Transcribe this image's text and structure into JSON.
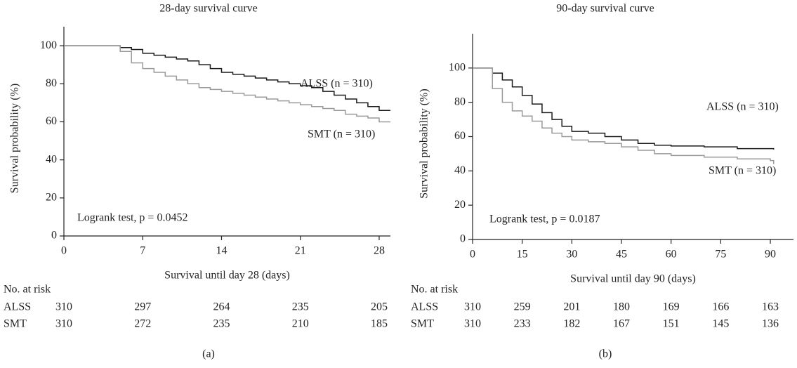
{
  "chart_data": [
    {
      "type": "line",
      "title": "28-day survival curve",
      "x_label": "Survival until day 28 (days)",
      "y_label": "Survival probability (%)",
      "xlim": [
        0,
        29
      ],
      "ylim": [
        0,
        110
      ],
      "xticks": [
        0,
        7,
        14,
        21,
        28
      ],
      "yticks": [
        0,
        20,
        40,
        60,
        80,
        100
      ],
      "x": [
        0,
        4,
        5,
        6,
        7,
        8,
        9,
        10,
        11,
        12,
        13,
        14,
        15,
        16,
        17,
        18,
        19,
        20,
        21,
        22,
        23,
        24,
        25,
        26,
        27,
        28,
        29
      ],
      "series": [
        {
          "name": "ALSS (n = 310)",
          "color": "#1a1a1a",
          "values": [
            100,
            100,
            99,
            98,
            96,
            95,
            94,
            93,
            92,
            90,
            88,
            86,
            85,
            84,
            83,
            82,
            81,
            80,
            79,
            78,
            76,
            74,
            72,
            70,
            68,
            66,
            66
          ]
        },
        {
          "name": "SMT (n = 310)",
          "color": "#9a9a9a",
          "values": [
            100,
            100,
            97,
            91,
            88,
            86,
            84,
            82,
            80,
            78,
            77,
            76,
            75,
            74,
            73,
            72,
            71,
            70,
            69,
            68,
            67,
            66,
            64,
            63,
            62,
            60,
            60
          ]
        }
      ],
      "annotation": "Logrank test, p = 0.0452",
      "risk_table": {
        "title": "No. at risk",
        "rows": [
          {
            "name": "ALSS",
            "values": [
              310,
              297,
              264,
              235,
              205
            ]
          },
          {
            "name": "SMT",
            "values": [
              310,
              272,
              235,
              210,
              185
            ]
          }
        ]
      },
      "panel_label": "(a)"
    },
    {
      "type": "line",
      "title": "90-day survival curve",
      "x_label": "Survival until day 90 (days)",
      "y_label": "Survival probability (%)",
      "xlim": [
        0,
        97
      ],
      "ylim": [
        0,
        120
      ],
      "xticks": [
        0,
        15,
        30,
        45,
        60,
        75,
        90
      ],
      "yticks": [
        0,
        20,
        40,
        60,
        80,
        100
      ],
      "x": [
        0,
        3,
        6,
        9,
        12,
        15,
        18,
        21,
        24,
        27,
        30,
        35,
        40,
        45,
        50,
        55,
        60,
        70,
        80,
        90,
        91
      ],
      "series": [
        {
          "name": "ALSS (n = 310)",
          "color": "#1a1a1a",
          "values": [
            100,
            100,
            97,
            93,
            89,
            84,
            79,
            74,
            70,
            66,
            63,
            62,
            60,
            58,
            56,
            55,
            54.5,
            54,
            53,
            53,
            52.5
          ]
        },
        {
          "name": "SMT (n = 310)",
          "color": "#9a9a9a",
          "values": [
            100,
            100,
            88,
            80,
            75,
            72,
            69,
            65,
            62,
            60,
            58,
            57,
            56,
            54,
            52,
            50,
            49,
            48,
            47,
            46,
            44
          ]
        }
      ],
      "annotation": "Logrank test, p = 0.0187",
      "risk_table": {
        "title": "No. at risk",
        "rows": [
          {
            "name": "ALSS",
            "values": [
              310,
              259,
              201,
              180,
              169,
              166,
              163
            ]
          },
          {
            "name": "SMT",
            "values": [
              310,
              233,
              182,
              167,
              151,
              145,
              136
            ]
          }
        ]
      },
      "panel_label": "(b)"
    }
  ]
}
